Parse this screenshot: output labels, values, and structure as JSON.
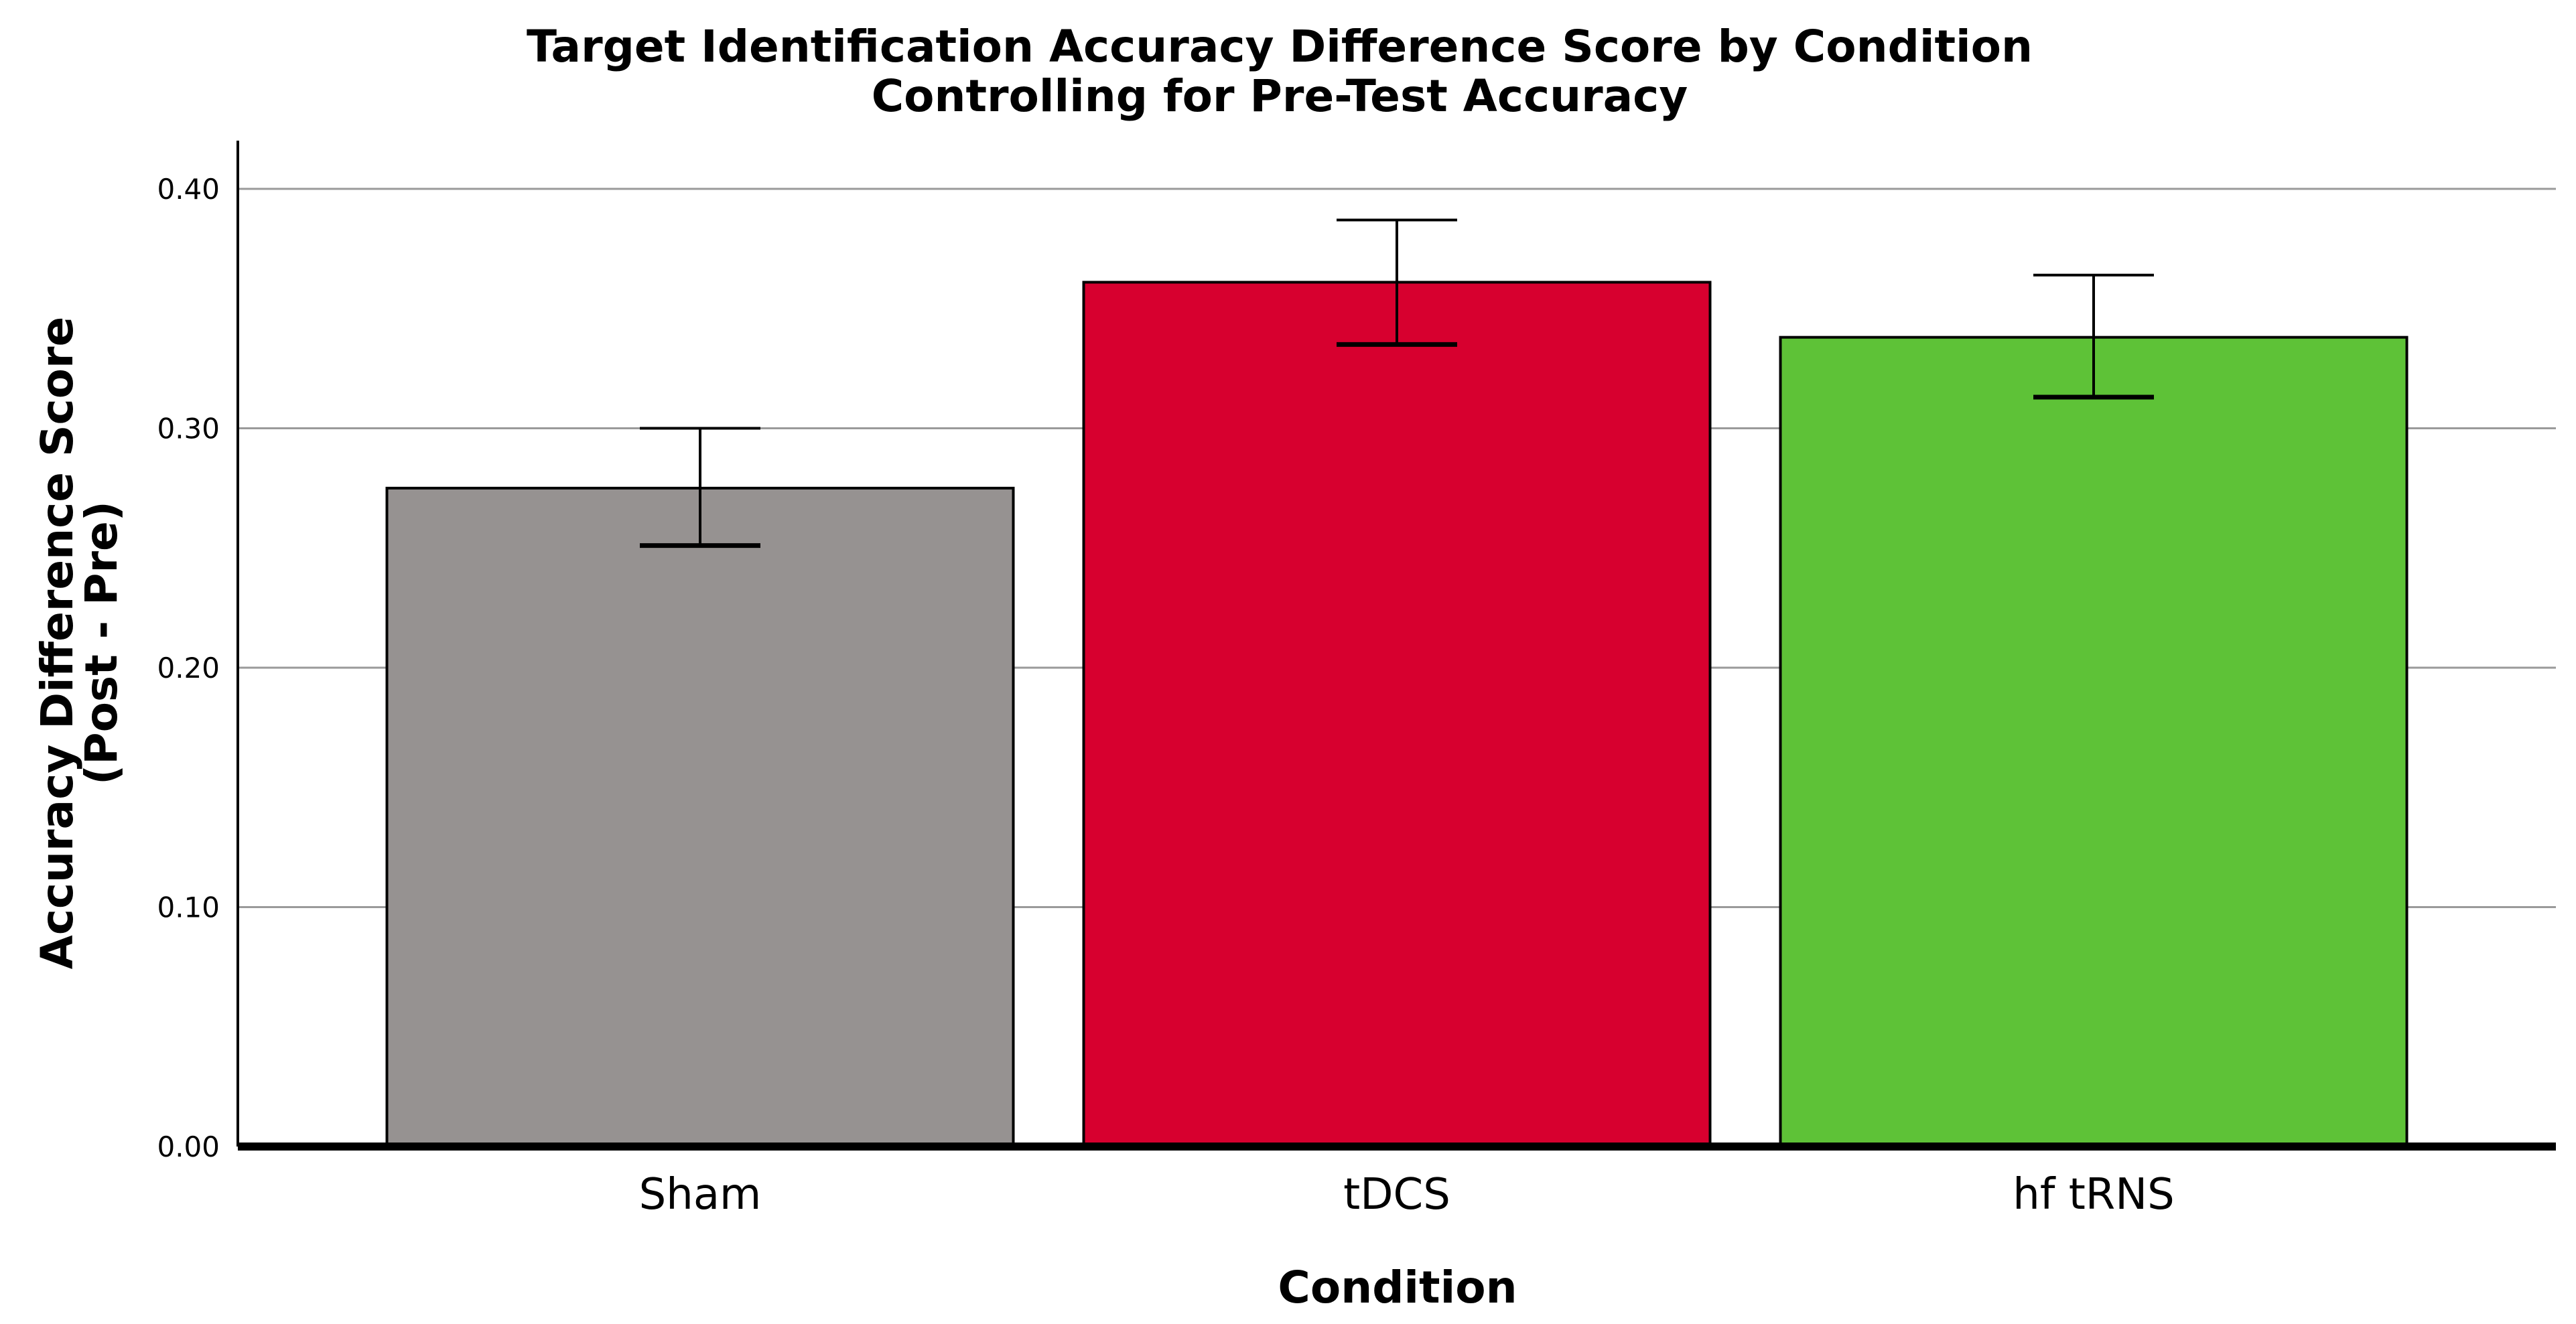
{
  "chart_data": {
    "type": "bar",
    "title": "Target Identification Accuracy Difference Score by Condition",
    "subtitle": "Controlling for Pre-Test Accuracy",
    "xlabel": "Condition",
    "ylabel": "Accuracy Difference Score",
    "ylabel_line2": "(Post - Pre)",
    "categories": [
      "Sham",
      "tDCS",
      "hf tRNS"
    ],
    "values": [
      0.275,
      0.361,
      0.338
    ],
    "error_low": [
      0.251,
      0.335,
      0.313
    ],
    "error_high": [
      0.3,
      0.387,
      0.364
    ],
    "colors": [
      "#969291",
      "#d7002f",
      "#5ec237"
    ],
    "ylim": [
      0.0,
      0.42
    ],
    "yticks": [
      0.0,
      0.1,
      0.2,
      0.3,
      0.4
    ],
    "ytick_labels": [
      "0.00",
      "0.10",
      "0.20",
      "0.30",
      "0.40"
    ],
    "grid": true
  }
}
